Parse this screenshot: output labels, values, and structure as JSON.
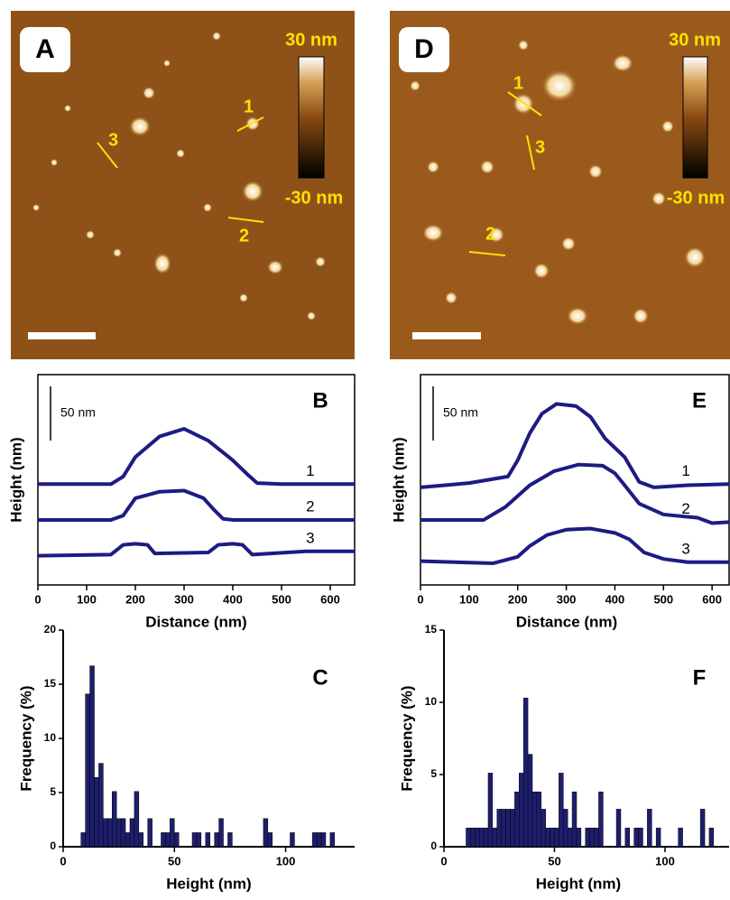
{
  "images": [
    {
      "label": "A",
      "colorbar_max": "30 nm",
      "colorbar_min": "-30 nm",
      "line_labels": [
        "1",
        "2",
        "3"
      ]
    },
    {
      "label": "D",
      "colorbar_max": "30 nm",
      "colorbar_min": "-30 nm",
      "line_labels": [
        "1",
        "2",
        "3"
      ]
    }
  ],
  "chart_data": [
    {
      "type": "line",
      "panel_label": "B",
      "xlabel": "Distance (nm)",
      "ylabel": "Height (nm)",
      "xlim": [
        0,
        650
      ],
      "xticks": [
        0,
        100,
        200,
        300,
        400,
        500,
        600
      ],
      "ylim": [
        0,
        194
      ],
      "scale_bar": {
        "value": 50,
        "label": "50 nm"
      },
      "series": [
        {
          "name": "1",
          "color": "#1c1c82",
          "x": [
            0,
            100,
            150,
            175,
            200,
            250,
            300,
            350,
            400,
            430,
            450,
            500,
            600,
            650
          ],
          "values": [
            93,
            93,
            93,
            100,
            118,
            137,
            144,
            133,
            115,
            102,
            94,
            93,
            93,
            93
          ]
        },
        {
          "name": "2",
          "color": "#1c1c82",
          "x": [
            0,
            150,
            175,
            200,
            250,
            300,
            340,
            360,
            380,
            400,
            650
          ],
          "values": [
            60,
            60,
            64,
            80,
            86,
            87,
            80,
            70,
            61,
            60,
            60
          ]
        },
        {
          "name": "3",
          "color": "#1c1c82",
          "x": [
            0,
            150,
            175,
            200,
            225,
            240,
            350,
            370,
            400,
            420,
            440,
            550,
            650
          ],
          "values": [
            27,
            28,
            37,
            38,
            37,
            29,
            30,
            37,
            38,
            37,
            28,
            31,
            31
          ]
        }
      ]
    },
    {
      "type": "histogram",
      "panel_label": "C",
      "xlabel": "Height (nm)",
      "ylabel": "Frequency (%)",
      "color": "#1e1e6e",
      "xlim": [
        0,
        131
      ],
      "xticks": [
        0,
        50,
        100
      ],
      "ylim": [
        0,
        20
      ],
      "yticks": [
        0,
        5,
        10,
        15,
        20
      ],
      "bins": [
        8,
        10,
        12,
        14,
        16,
        18,
        20,
        22,
        24,
        26,
        28,
        30,
        32,
        34,
        36,
        38,
        40,
        42,
        44,
        46,
        48,
        50,
        52,
        54,
        56,
        58,
        60,
        62,
        64,
        66,
        68,
        70,
        72,
        74,
        76,
        78,
        80,
        82,
        84,
        86,
        88,
        90,
        92,
        94,
        96,
        98,
        100,
        102,
        104,
        106,
        108,
        110,
        112,
        114,
        116,
        118,
        120,
        122
      ],
      "values": [
        1.3,
        14.1,
        16.7,
        6.4,
        7.7,
        2.6,
        2.6,
        5.1,
        2.6,
        2.6,
        1.3,
        2.6,
        5.1,
        1.3,
        0,
        2.6,
        0,
        0,
        1.3,
        1.3,
        2.6,
        1.3,
        0,
        0,
        0,
        1.3,
        1.3,
        0,
        1.3,
        0,
        1.3,
        2.6,
        0,
        1.3,
        0,
        0,
        0,
        0,
        0,
        0,
        0,
        2.6,
        1.3,
        0,
        0,
        0,
        0,
        1.3,
        0,
        0,
        0,
        0,
        1.3,
        1.3,
        1.3,
        0,
        1.3
      ]
    },
    {
      "type": "line",
      "panel_label": "E",
      "xlabel": "Distance (nm)",
      "ylabel": "Height (nm)",
      "xlim": [
        0,
        635
      ],
      "xticks": [
        0,
        100,
        200,
        300,
        400,
        500,
        600
      ],
      "ylim": [
        0,
        194
      ],
      "scale_bar": {
        "value": 50,
        "label": "50 nm"
      },
      "series": [
        {
          "name": "1",
          "color": "#1c1c82",
          "x": [
            0,
            100,
            180,
            200,
            225,
            250,
            280,
            320,
            350,
            380,
            420,
            450,
            480,
            550,
            635
          ],
          "values": [
            90,
            94,
            100,
            115,
            140,
            158,
            167,
            165,
            155,
            135,
            118,
            95,
            90,
            92,
            93
          ]
        },
        {
          "name": "2",
          "color": "#1c1c82",
          "x": [
            0,
            130,
            175,
            225,
            275,
            325,
            375,
            400,
            420,
            450,
            500,
            570,
            600,
            635
          ],
          "values": [
            60,
            60,
            72,
            92,
            105,
            111,
            110,
            103,
            92,
            75,
            65,
            62,
            57,
            58
          ]
        },
        {
          "name": "3",
          "color": "#1c1c82",
          "x": [
            0,
            150,
            200,
            225,
            260,
            300,
            350,
            400,
            430,
            460,
            500,
            550,
            635
          ],
          "values": [
            22,
            20,
            26,
            36,
            46,
            51,
            52,
            48,
            42,
            30,
            24,
            21,
            21
          ]
        }
      ]
    },
    {
      "type": "histogram",
      "panel_label": "F",
      "xlabel": "Height (nm)",
      "ylabel": "Frequency (%)",
      "color": "#1e1e6e",
      "xlim": [
        0,
        129
      ],
      "xticks": [
        0,
        50,
        100
      ],
      "ylim": [
        0,
        15
      ],
      "yticks": [
        0,
        5,
        10,
        15
      ],
      "bins": [
        10,
        12,
        14,
        16,
        18,
        20,
        22,
        24,
        26,
        28,
        30,
        32,
        34,
        36,
        38,
        40,
        42,
        44,
        46,
        48,
        50,
        52,
        54,
        56,
        58,
        60,
        62,
        64,
        66,
        68,
        70,
        72,
        74,
        76,
        78,
        80,
        82,
        84,
        86,
        88,
        90,
        92,
        94,
        96,
        98,
        100,
        102,
        104,
        106,
        108,
        110,
        112,
        114,
        116,
        118,
        120,
        122,
        124
      ],
      "values": [
        1.3,
        1.3,
        1.3,
        1.3,
        1.3,
        5.1,
        1.3,
        2.6,
        2.6,
        2.6,
        2.6,
        3.8,
        5.1,
        10.3,
        6.4,
        3.8,
        3.8,
        2.6,
        1.3,
        1.3,
        1.3,
        5.1,
        2.6,
        1.3,
        3.8,
        1.3,
        0,
        1.3,
        1.3,
        1.3,
        3.8,
        0,
        0,
        0,
        2.6,
        0,
        1.3,
        0,
        1.3,
        1.3,
        0,
        2.6,
        0,
        1.3,
        0,
        0,
        0,
        0,
        1.3,
        0,
        0,
        0,
        0,
        2.6,
        0,
        1.3,
        0
      ]
    }
  ]
}
